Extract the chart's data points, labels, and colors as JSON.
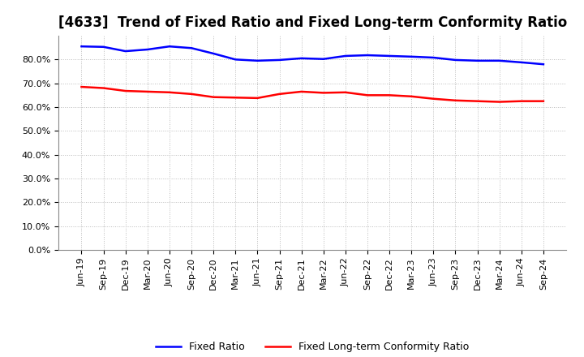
{
  "title": "[4633]  Trend of Fixed Ratio and Fixed Long-term Conformity Ratio",
  "x_labels": [
    "Jun-19",
    "Sep-19",
    "Dec-19",
    "Mar-20",
    "Jun-20",
    "Sep-20",
    "Dec-20",
    "Mar-21",
    "Jun-21",
    "Sep-21",
    "Dec-21",
    "Mar-22",
    "Jun-22",
    "Sep-22",
    "Dec-22",
    "Mar-23",
    "Jun-23",
    "Sep-23",
    "Dec-23",
    "Mar-24",
    "Jun-24",
    "Sep-24"
  ],
  "fixed_ratio": [
    85.5,
    85.3,
    83.5,
    84.2,
    85.5,
    84.8,
    82.5,
    80.0,
    79.5,
    79.8,
    80.5,
    80.2,
    81.5,
    81.8,
    81.5,
    81.2,
    80.8,
    79.8,
    79.5,
    79.5,
    78.8,
    78.0
  ],
  "fixed_lt_ratio": [
    68.5,
    68.0,
    66.8,
    66.5,
    66.2,
    65.5,
    64.2,
    64.0,
    63.8,
    65.5,
    66.5,
    66.0,
    66.2,
    65.0,
    65.0,
    64.5,
    63.5,
    62.8,
    62.5,
    62.2,
    62.5,
    62.5
  ],
  "fixed_ratio_color": "#0000FF",
  "fixed_lt_ratio_color": "#FF0000",
  "background_color": "#FFFFFF",
  "plot_bg_color": "#FFFFFF",
  "ylim_max": 90,
  "yticks": [
    0,
    10,
    20,
    30,
    40,
    50,
    60,
    70,
    80
  ],
  "legend_fixed": "Fixed Ratio",
  "legend_lt": "Fixed Long-term Conformity Ratio",
  "grid_color": "#BBBBBB",
  "title_fontsize": 12,
  "tick_fontsize": 8,
  "line_width": 1.8
}
